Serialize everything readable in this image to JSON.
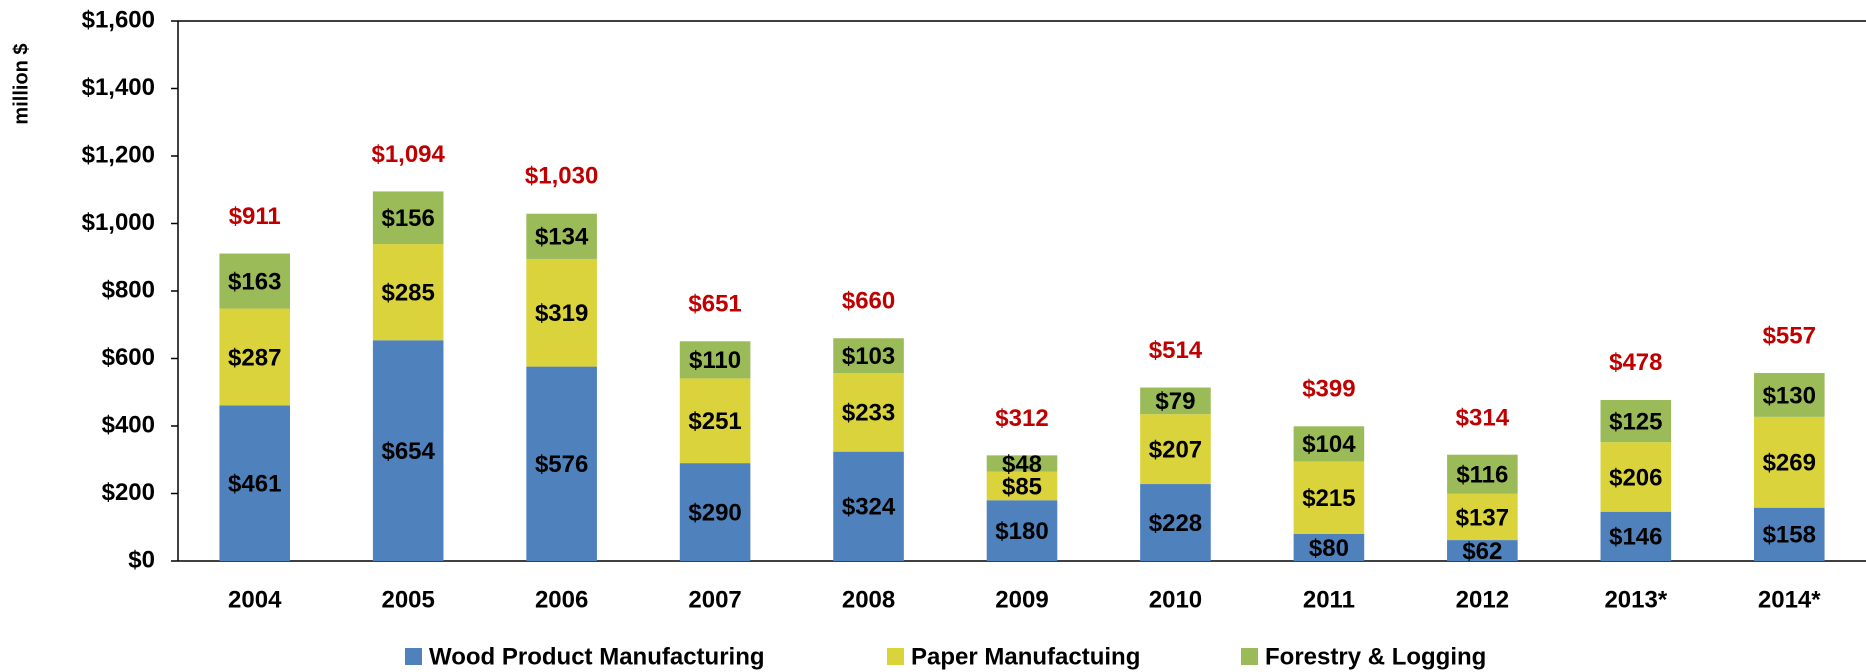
{
  "chart_data": {
    "type": "stacked_bar",
    "y_axis_label": "million $",
    "categories": [
      "2004",
      "2005",
      "2006",
      "2007",
      "2008",
      "2009",
      "2010",
      "2011",
      "2012",
      "2013*",
      "2014*"
    ],
    "series": [
      {
        "name": "Wood Product Manufacturing",
        "color": "#4f81bd",
        "values": [
          461,
          654,
          576,
          290,
          324,
          180,
          228,
          80,
          62,
          146,
          158
        ],
        "value_labels": [
          "$461",
          "$654",
          "$576",
          "$290",
          "$324",
          "$180",
          "$228",
          "$80",
          "$62",
          "$146",
          "$158"
        ]
      },
      {
        "name": "Paper Manufactuing",
        "color": "#dad33c",
        "values": [
          287,
          285,
          319,
          251,
          233,
          85,
          207,
          215,
          137,
          206,
          269
        ],
        "value_labels": [
          "$287",
          "$285",
          "$319",
          "$251",
          "$233",
          "$85",
          "$207",
          "$215",
          "$137",
          "$206",
          "$269"
        ]
      },
      {
        "name": "Forestry & Logging",
        "color": "#9bbb59",
        "values": [
          163,
          156,
          134,
          110,
          103,
          48,
          79,
          104,
          116,
          125,
          130
        ],
        "value_labels": [
          "$163",
          "$156",
          "$134",
          "$110",
          "$103",
          "$48",
          "$79",
          "$104",
          "$116",
          "$125",
          "$130"
        ]
      }
    ],
    "totals": [
      911,
      1094,
      1030,
      651,
      660,
      312,
      514,
      399,
      314,
      478,
      557
    ],
    "total_labels": [
      "$911",
      "$1,094",
      "$1,030",
      "$651",
      "$660",
      "$312",
      "$514",
      "$399",
      "$314",
      "$478",
      "$557"
    ],
    "total_color": "#c00000",
    "ylim": [
      0,
      1600
    ],
    "yticks": [
      {
        "value": 0,
        "label": "$0"
      },
      {
        "value": 200,
        "label": "$200"
      },
      {
        "value": 400,
        "label": "$400"
      },
      {
        "value": 600,
        "label": "$600"
      },
      {
        "value": 800,
        "label": "$800"
      },
      {
        "value": 1000,
        "label": "$1,000"
      },
      {
        "value": 1200,
        "label": "$1,200"
      },
      {
        "value": 1400,
        "label": "$1,400"
      },
      {
        "value": 1600,
        "label": "$1,600"
      }
    ],
    "grid": false,
    "legend": "bottom"
  }
}
